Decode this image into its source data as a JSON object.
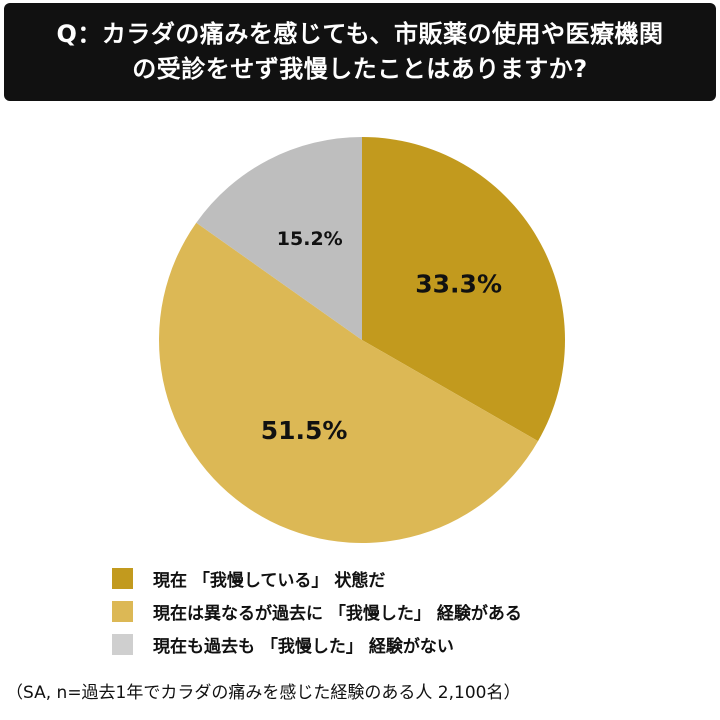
{
  "title": {
    "line1": "Q：カラダの痛みを感じても、市販薬の使用や医療機関",
    "line2": "の受診をせず我慢したことはありますか?"
  },
  "chart_data": {
    "type": "pie",
    "start": "12 o'clock",
    "direction": "clockwise",
    "slices": [
      {
        "label": "現在 「我慢している」 状態だ",
        "value": 33.3,
        "display": "33.3%",
        "color": "#C29A1E"
      },
      {
        "label": "現在は異なるが過去に 「我慢した」 経験がある",
        "value": 51.5,
        "display": "51.5%",
        "color": "#DCB855"
      },
      {
        "label": "現在も過去も 「我慢した」 経験がない",
        "value": 15.2,
        "display": "15.2%",
        "color": "#BEBEBE"
      }
    ]
  },
  "legend": {
    "items": [
      {
        "label": "現在 「我慢している」 状態だ",
        "color": "#C29A1E"
      },
      {
        "label": "現在は異なるが過去に 「我慢した」 経験がある",
        "color": "#DCB855"
      },
      {
        "label": "現在も過去も 「我慢した」 経験がない",
        "color": "#CFCFCF"
      }
    ]
  },
  "note": "（SA, n=過去1年でカラダの痛みを感じた経験のある人 2,100名）"
}
